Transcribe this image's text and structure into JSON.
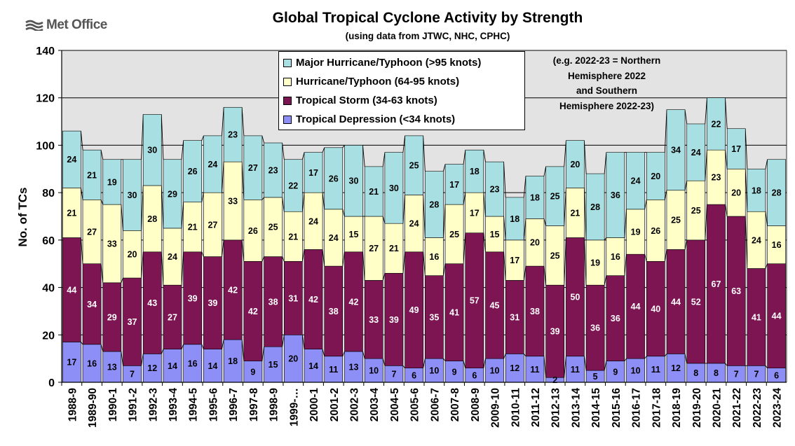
{
  "logo": {
    "text": "Met Office",
    "icon": "met-office-waves-icon"
  },
  "colors": {
    "plot_background": "#e3e3e3",
    "tropical_depression": "#8e8ef7",
    "tropical_storm": "#7d1553",
    "hurricane_typhoon": "#ffffc7",
    "major_hurricane_typhoon": "#a7dfe3"
  },
  "chart_data": {
    "type": "bar",
    "stacked": true,
    "title": "Global Tropical Cyclone Activity by Strength",
    "subtitle": "(using data from JTWC, NHC, CPHC)",
    "xlabel": "",
    "ylabel": "No. of TCs",
    "ylim": [
      0,
      140
    ],
    "yticks": [
      0,
      20,
      40,
      60,
      80,
      100,
      120,
      140
    ],
    "grid": true,
    "legend_position": "top-center",
    "annotation": [
      "(e.g. 2022-23 = Northern",
      "Hemisphere 2022",
      "and Southern",
      "Hemisphere 2022-23)"
    ],
    "categories": [
      "1988-9",
      "1989-90",
      "1990-1",
      "1991-2",
      "1992-3",
      "1993-4",
      "1994-5",
      "1995-6",
      "1996-7",
      "1997-8",
      "1998-9",
      "1999-…",
      "2000-1",
      "2001-2",
      "2002-3",
      "2003-4",
      "2004-5",
      "2005-6",
      "2006-7",
      "2007-8",
      "2008-9",
      "2009-10",
      "2010-11",
      "2011-12",
      "2012-13",
      "2013-14",
      "2014-15",
      "2015-16",
      "2016-17",
      "2017-18",
      "2018-19",
      "2019-20",
      "2020-21",
      "2021-22",
      "2022-23",
      "2023-24"
    ],
    "series": [
      {
        "name": "Tropical Depression (<34 knots)",
        "values": [
          17,
          16,
          13,
          7,
          12,
          14,
          16,
          14,
          18,
          9,
          15,
          20,
          14,
          11,
          13,
          10,
          7,
          6,
          10,
          9,
          6,
          10,
          12,
          11,
          2,
          11,
          5,
          9,
          10,
          11,
          12,
          8,
          8,
          7,
          7,
          6
        ]
      },
      {
        "name": "Tropical Storm (34-63 knots)",
        "values": [
          44,
          34,
          29,
          37,
          43,
          27,
          39,
          39,
          42,
          42,
          38,
          31,
          42,
          38,
          42,
          33,
          39,
          49,
          35,
          41,
          57,
          45,
          31,
          38,
          39,
          50,
          36,
          36,
          44,
          40,
          44,
          52,
          67,
          63,
          41,
          44
        ]
      },
      {
        "name": "Hurricane/Typhoon (64-95 knots)",
        "values": [
          21,
          27,
          33,
          20,
          28,
          24,
          21,
          27,
          33,
          26,
          25,
          21,
          24,
          24,
          15,
          27,
          21,
          24,
          16,
          25,
          17,
          15,
          17,
          20,
          25,
          21,
          19,
          16,
          19,
          26,
          25,
          25,
          23,
          20,
          24,
          16
        ]
      },
      {
        "name": "Major Hurricane/Typhoon (>95 knots)",
        "values": [
          24,
          21,
          19,
          30,
          30,
          29,
          26,
          24,
          23,
          27,
          23,
          22,
          17,
          26,
          30,
          21,
          30,
          25,
          28,
          17,
          18,
          23,
          18,
          18,
          25,
          20,
          28,
          36,
          24,
          20,
          34,
          24,
          22,
          17,
          18,
          28
        ]
      }
    ]
  }
}
